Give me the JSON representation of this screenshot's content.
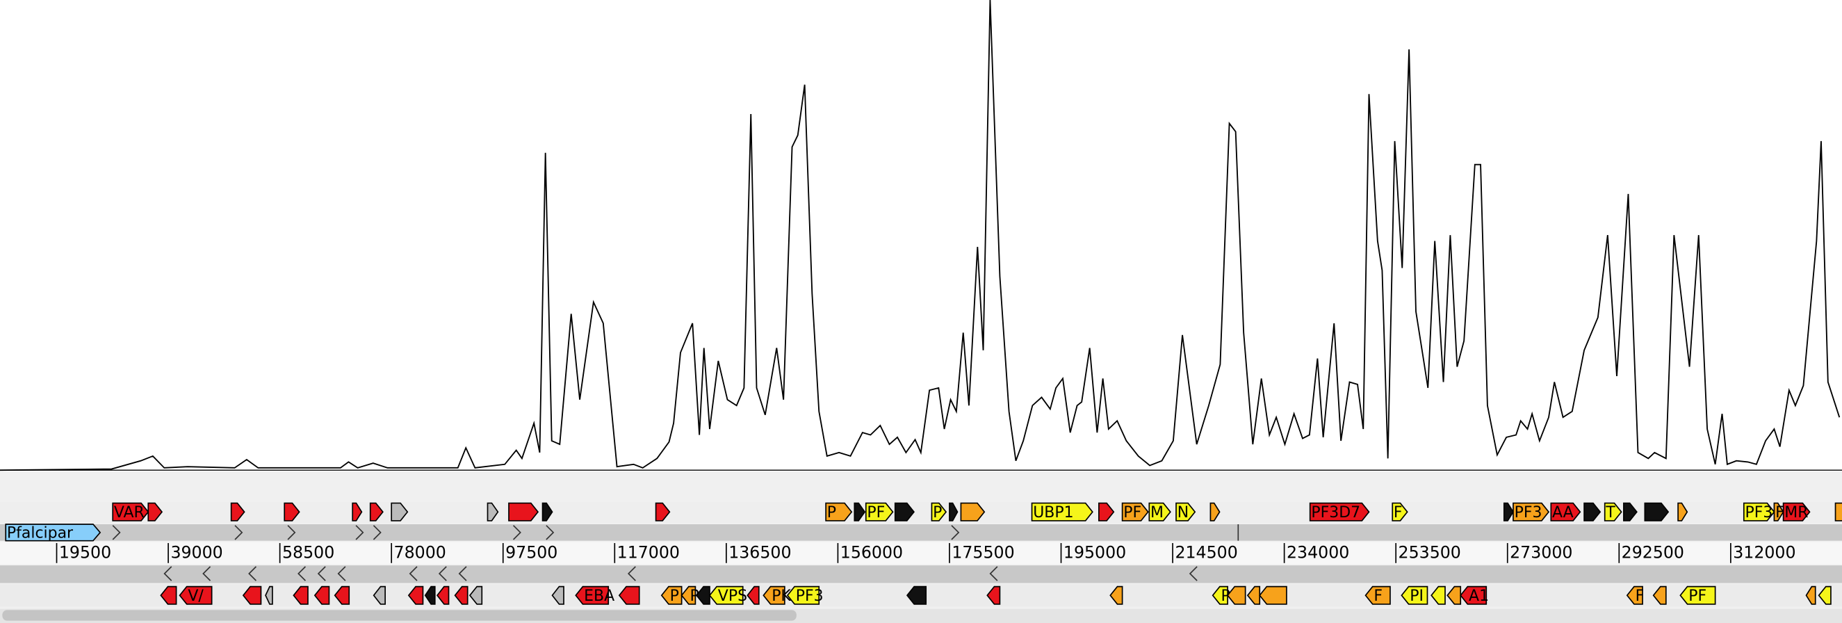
{
  "plot": {
    "type": "line",
    "color": "#000000",
    "xlim": [
      9600,
      331450
    ],
    "ylim": [
      0,
      100
    ],
    "x": [
      9600,
      29100,
      34200,
      36300,
      38300,
      42400,
      50600,
      52700,
      54700,
      69100,
      70500,
      72100,
      74800,
      77300,
      89600,
      91000,
      92600,
      97800,
      99800,
      100800,
      102900,
      103900,
      104900,
      106000,
      107400,
      109400,
      110900,
      113300,
      115000,
      117400,
      120300,
      121900,
      124400,
      126500,
      127300,
      128500,
      130600,
      131800,
      132600,
      133600,
      135100,
      136700,
      138300,
      139600,
      140800,
      141800,
      143300,
      145300,
      146500,
      148000,
      149000,
      150200,
      151500,
      152700,
      154100,
      156200,
      158200,
      160300,
      161700,
      163400,
      165000,
      166400,
      167900,
      169500,
      170500,
      172000,
      173600,
      174600,
      175700,
      176700,
      177900,
      178900,
      180400,
      181400,
      182600,
      184300,
      185900,
      187100,
      188400,
      190000,
      191600,
      193100,
      194100,
      195300,
      196600,
      197800,
      198600,
      200000,
      201300,
      202300,
      203300,
      204800,
      206400,
      208500,
      210500,
      212600,
      214600,
      216200,
      218700,
      220800,
      222800,
      224400,
      225500,
      226900,
      228500,
      230000,
      231400,
      232600,
      234100,
      235700,
      237200,
      238400,
      239800,
      240800,
      242700,
      243900,
      245400,
      246800,
      247800,
      248800,
      250300,
      251100,
      252100,
      253300,
      254600,
      255800,
      257000,
      258300,
      259100,
      260300,
      261800,
      263000,
      264200,
      265400,
      267300,
      268300,
      269500,
      271200,
      272800,
      274500,
      275300,
      276500,
      277300,
      278600,
      280200,
      281200,
      282700,
      284300,
      286400,
      288800,
      290500,
      292100,
      294100,
      295800,
      297600,
      298700,
      300700,
      302100,
      304800,
      306400,
      307900,
      309300,
      310500,
      311400,
      313000,
      315000,
      316500,
      318100,
      319600,
      320600,
      322200,
      323300,
      324700,
      327000,
      327800,
      329000,
      331000
    ],
    "values": [
      0,
      0.25,
      2,
      3,
      0.5,
      0.75,
      0.5,
      2.25,
      0.5,
      0.5,
      1.75,
      0.5,
      1.5,
      0.5,
      0.5,
      4.75,
      0.5,
      1.25,
      4.25,
      2.5,
      10,
      3.75,
      67.5,
      6.25,
      5.5,
      33.25,
      15,
      35.75,
      31.25,
      0.75,
      1.25,
      0.5,
      2.5,
      6,
      10,
      25,
      31.25,
      7.5,
      26,
      8.75,
      23.25,
      15,
      13.75,
      17.5,
      75.75,
      17.5,
      11.75,
      26,
      15,
      68.75,
      71.25,
      82,
      37.5,
      12.5,
      3,
      3.75,
      3,
      8,
      7.5,
      9.5,
      5.5,
      7,
      3.75,
      6.5,
      3.75,
      17,
      17.5,
      8.75,
      15,
      12.5,
      29.25,
      13.75,
      47.5,
      25.5,
      100,
      41.25,
      12.5,
      2,
      6.25,
      13.75,
      15.5,
      13,
      17.5,
      19.5,
      8,
      13.75,
      14.5,
      26,
      8,
      19.5,
      8.75,
      10.5,
      6.25,
      3,
      1,
      2,
      6.25,
      28.75,
      5.5,
      13.75,
      22.5,
      73.75,
      72,
      29.25,
      5.5,
      19.5,
      7.5,
      11.25,
      5.5,
      12,
      6.75,
      7.5,
      23.75,
      7,
      31.25,
      6.25,
      18.75,
      18.25,
      8.75,
      80,
      48.75,
      42.5,
      2.5,
      70,
      43,
      89.5,
      33.75,
      23.75,
      17.5,
      48.75,
      18.75,
      50,
      22,
      27.5,
      65,
      65,
      13.75,
      3.25,
      7,
      7.5,
      10.5,
      8.75,
      12,
      6.25,
      11.25,
      18.75,
      11.25,
      12.5,
      25.5,
      32.5,
      50,
      20,
      58.75,
      3.75,
      2.5,
      3.75,
      2.5,
      50,
      22,
      50,
      8.75,
      1.25,
      12,
      1.25,
      2,
      1.75,
      1.25,
      6.25,
      8.75,
      5,
      17,
      13.75,
      18,
      48.75,
      70,
      18.75,
      11.25
    ]
  },
  "ruler": {
    "ticks": [
      19500,
      39000,
      58500,
      78000,
      97500,
      117000,
      136500,
      156000,
      175500,
      195000,
      214500,
      234000,
      253500,
      273000,
      292500,
      312000
    ]
  },
  "contig": {
    "label": "Pfalcipar",
    "start": 10600,
    "end": 27100,
    "color": "#87cefa"
  },
  "forward_features": [
    {
      "label": "VAR",
      "start": 29300,
      "end": 35500,
      "color": "#e8141c"
    },
    {
      "start": 35500,
      "end": 37900,
      "color": "#e8141c"
    },
    {
      "start": 50000,
      "end": 52300,
      "color": "#e8141c"
    },
    {
      "start": 59300,
      "end": 61900,
      "color": "#e8141c"
    },
    {
      "start": 71200,
      "end": 72800,
      "color": "#e8141c"
    },
    {
      "start": 74300,
      "end": 76500,
      "color": "#e8141c"
    },
    {
      "start": 78000,
      "end": 80800,
      "color": "#bbbbbb"
    },
    {
      "start": 94800,
      "end": 96600,
      "color": "#bbbbbb"
    },
    {
      "start": 98500,
      "end": 103600,
      "color": "#e8141c"
    },
    {
      "start": 104400,
      "end": 106100,
      "color": "#111111"
    },
    {
      "start": 124200,
      "end": 126600,
      "color": "#e8141c"
    },
    {
      "label": "P",
      "start": 153900,
      "end": 158400,
      "color": "#f7a21b"
    },
    {
      "start": 158900,
      "end": 160700,
      "color": "#111111"
    },
    {
      "label": "PF",
      "start": 160900,
      "end": 165600,
      "color": "#f5f51a"
    },
    {
      "start": 166000,
      "end": 169300,
      "color": "#111111"
    },
    {
      "label": "P",
      "start": 172400,
      "end": 174900,
      "color": "#f5f51a"
    },
    {
      "start": 175500,
      "end": 176900,
      "color": "#111111"
    },
    {
      "start": 177500,
      "end": 181600,
      "color": "#f7a21b"
    },
    {
      "label": "UBP1",
      "start": 189900,
      "end": 200500,
      "color": "#f5f51a"
    },
    {
      "start": 201600,
      "end": 204200,
      "color": "#e8141c"
    },
    {
      "label": "PF",
      "start": 205700,
      "end": 210200,
      "color": "#f7a21b"
    },
    {
      "label": "M",
      "start": 210400,
      "end": 214100,
      "color": "#f5f51a"
    },
    {
      "label": "N",
      "start": 215100,
      "end": 218400,
      "color": "#f5f51a"
    },
    {
      "start": 221100,
      "end": 222700,
      "color": "#f7a21b"
    },
    {
      "label": "PF3D7",
      "start": 238500,
      "end": 248800,
      "color": "#e8141c"
    },
    {
      "label": "F",
      "start": 252900,
      "end": 255500,
      "color": "#f5f51a"
    },
    {
      "start": 272400,
      "end": 274000,
      "color": "#111111"
    },
    {
      "label": "PF3",
      "start": 274000,
      "end": 280200,
      "color": "#f7a21b"
    },
    {
      "label": "AA",
      "start": 280600,
      "end": 285700,
      "color": "#e8141c"
    },
    {
      "start": 286400,
      "end": 289200,
      "color": "#111111"
    },
    {
      "label": "T",
      "start": 290000,
      "end": 292900,
      "color": "#f5f51a"
    },
    {
      "start": 293300,
      "end": 295600,
      "color": "#111111"
    },
    {
      "start": 297000,
      "end": 301100,
      "color": "#111111"
    },
    {
      "start": 302800,
      "end": 304400,
      "color": "#f7a21b"
    },
    {
      "label": "PF3",
      "start": 314300,
      "end": 319600,
      "color": "#f5f51a"
    },
    {
      "label": "F",
      "start": 319600,
      "end": 321200,
      "color": "#f7a21b"
    },
    {
      "label": "MR",
      "start": 321200,
      "end": 325800,
      "color": "#e8141c"
    },
    {
      "start": 330300,
      "end": 333000,
      "color": "#f7a21b"
    }
  ],
  "reverse_features": [
    {
      "start": 37700,
      "end": 40400,
      "color": "#e8141c"
    },
    {
      "label": "V/",
      "start": 41000,
      "end": 46600,
      "color": "#e8141c"
    },
    {
      "start": 52100,
      "end": 55200,
      "color": "#e8141c"
    },
    {
      "start": 56000,
      "end": 57200,
      "color": "#bbbbbb"
    },
    {
      "start": 60900,
      "end": 63400,
      "color": "#e8141c"
    },
    {
      "start": 64600,
      "end": 67100,
      "color": "#e8141c"
    },
    {
      "start": 68100,
      "end": 70600,
      "color": "#e8141c"
    },
    {
      "start": 74900,
      "end": 76900,
      "color": "#bbbbbb"
    },
    {
      "start": 81000,
      "end": 83500,
      "color": "#e8141c"
    },
    {
      "start": 83900,
      "end": 85600,
      "color": "#111111"
    },
    {
      "start": 86000,
      "end": 88000,
      "color": "#e8141c"
    },
    {
      "start": 89100,
      "end": 91300,
      "color": "#e8141c"
    },
    {
      "start": 91700,
      "end": 93800,
      "color": "#bbbbbb"
    },
    {
      "start": 106100,
      "end": 108100,
      "color": "#bbbbbb"
    },
    {
      "label": "EBA",
      "start": 110200,
      "end": 115900,
      "color": "#e8141c"
    },
    {
      "start": 117800,
      "end": 121300,
      "color": "#e8141c"
    },
    {
      "label": "P",
      "start": 125200,
      "end": 128700,
      "color": "#f7a21b"
    },
    {
      "label": "P",
      "start": 128700,
      "end": 131100,
      "color": "#f7a21b"
    },
    {
      "start": 131300,
      "end": 133600,
      "color": "#111111"
    },
    {
      "label": "VPS",
      "start": 133600,
      "end": 139400,
      "color": "#f5f51a"
    },
    {
      "start": 140200,
      "end": 142200,
      "color": "#e8141c"
    },
    {
      "label": "PK",
      "start": 143000,
      "end": 146700,
      "color": "#f7a21b"
    },
    {
      "label": "PF3",
      "start": 147200,
      "end": 152700,
      "color": "#f5f51a"
    },
    {
      "start": 168100,
      "end": 171400,
      "color": "#111111"
    },
    {
      "start": 182100,
      "end": 184300,
      "color": "#e8141c"
    },
    {
      "start": 203600,
      "end": 205700,
      "color": "#f7a21b"
    },
    {
      "label": "P",
      "start": 221500,
      "end": 224100,
      "color": "#f5f51a"
    },
    {
      "start": 224100,
      "end": 227200,
      "color": "#f7a21b"
    },
    {
      "start": 227600,
      "end": 229700,
      "color": "#f7a21b"
    },
    {
      "start": 229700,
      "end": 234400,
      "color": "#f7a21b"
    },
    {
      "label": "F",
      "start": 248200,
      "end": 252500,
      "color": "#f7a21b"
    },
    {
      "label": "PI",
      "start": 254500,
      "end": 259000,
      "color": "#f5f51a"
    },
    {
      "start": 259700,
      "end": 262100,
      "color": "#f5f51a"
    },
    {
      "start": 262500,
      "end": 264800,
      "color": "#f7a21b"
    },
    {
      "label": "A1",
      "start": 264800,
      "end": 269300,
      "color": "#e8141c"
    },
    {
      "label": "F",
      "start": 293900,
      "end": 296600,
      "color": "#f7a21b"
    },
    {
      "start": 298500,
      "end": 300700,
      "color": "#f7a21b"
    },
    {
      "label": "PF",
      "start": 303200,
      "end": 309300,
      "color": "#f5f51a"
    },
    {
      "start": 325200,
      "end": 326800,
      "color": "#f7a21b"
    },
    {
      "start": 327400,
      "end": 329500,
      "color": "#f5f51a"
    }
  ]
}
